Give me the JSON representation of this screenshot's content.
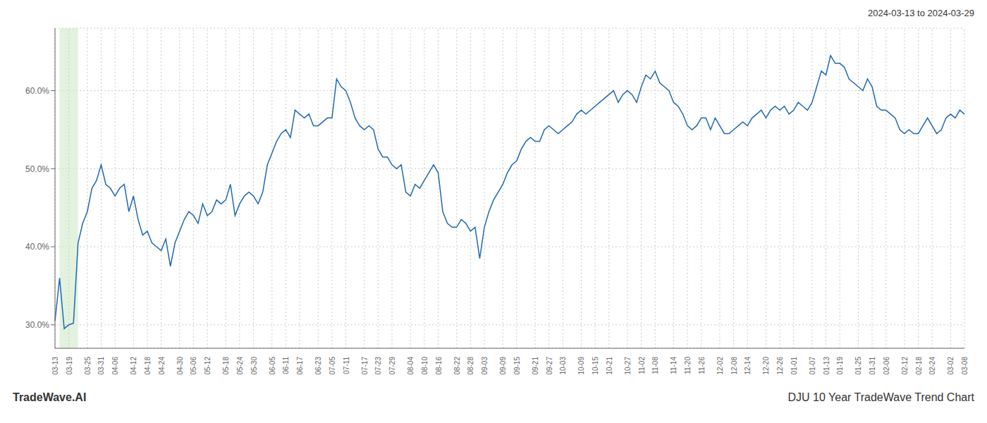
{
  "chart_data": {
    "type": "line",
    "title": "DJU 10 Year TradeWave Trend Chart",
    "subtitle": "2024-03-13 to 2024-03-29",
    "annotations": [
      "TradeWave.AI"
    ],
    "color": "#2068b0",
    "grid": true,
    "ylim": [
      27.0,
      68.0
    ],
    "yticks": [
      {
        "value": 30.0,
        "label": "30.0%"
      },
      {
        "value": 40.0,
        "label": "40.0%"
      },
      {
        "value": 50.0,
        "label": "50.0%"
      },
      {
        "value": 60.0,
        "label": "60.0%"
      }
    ],
    "highlight": {
      "start": 1,
      "end": 5,
      "color": "#d6ecd2"
    },
    "categories": [
      "03-13",
      null,
      null,
      "03-19",
      null,
      null,
      null,
      "03-25",
      null,
      null,
      "03-31",
      null,
      null,
      "04-06",
      null,
      null,
      null,
      "04-12",
      null,
      null,
      "04-18",
      null,
      null,
      "04-24",
      null,
      null,
      null,
      "04-30",
      null,
      null,
      "05-06",
      null,
      null,
      "05-12",
      null,
      null,
      null,
      "05-18",
      null,
      null,
      "05-24",
      null,
      null,
      "05-30",
      null,
      null,
      null,
      "06-05",
      null,
      null,
      "06-11",
      null,
      null,
      "06-17",
      null,
      null,
      null,
      "06-23",
      null,
      null,
      "07-05",
      null,
      null,
      "07-11",
      null,
      null,
      null,
      "07-17",
      null,
      null,
      "07-23",
      null,
      null,
      "07-29",
      null,
      null,
      null,
      "08-04",
      null,
      null,
      "08-10",
      null,
      null,
      "08-16",
      null,
      null,
      null,
      "08-22",
      null,
      null,
      "08-28",
      null,
      null,
      "09-03",
      null,
      null,
      null,
      "09-09",
      null,
      null,
      "09-15",
      null,
      null,
      null,
      "09-21",
      null,
      null,
      "09-27",
      null,
      null,
      "10-03",
      null,
      null,
      null,
      "10-09",
      null,
      null,
      "10-15",
      null,
      null,
      "10-21",
      null,
      null,
      null,
      "10-27",
      null,
      null,
      "11-02",
      null,
      null,
      "11-08",
      null,
      null,
      null,
      "11-14",
      null,
      null,
      "11-20",
      null,
      null,
      "11-26",
      null,
      null,
      null,
      "12-02",
      null,
      null,
      "12-08",
      null,
      null,
      "12-14",
      null,
      null,
      null,
      "12-20",
      null,
      null,
      "12-26",
      null,
      null,
      "01-01",
      null,
      null,
      null,
      "01-07",
      null,
      null,
      "01-13",
      null,
      null,
      "01-19",
      null,
      null,
      null,
      "01-25",
      null,
      null,
      "01-31",
      null,
      null,
      "02-06",
      null,
      null,
      null,
      "02-12",
      null,
      null,
      "02-18",
      null,
      null,
      "02-24",
      null,
      null,
      null,
      "03-02",
      null,
      null,
      "03-08"
    ],
    "values": [
      30.5,
      36.0,
      29.5,
      30.0,
      30.2,
      40.5,
      43.0,
      44.5,
      47.5,
      48.5,
      50.5,
      48.0,
      47.5,
      46.5,
      47.5,
      48.0,
      44.5,
      46.5,
      43.5,
      41.5,
      42.0,
      40.5,
      40.0,
      39.5,
      41.0,
      37.5,
      40.5,
      42.0,
      43.5,
      44.5,
      44.0,
      43.0,
      45.5,
      44.0,
      44.5,
      46.0,
      45.5,
      46.0,
      48.0,
      44.0,
      45.5,
      46.5,
      47.0,
      46.5,
      45.5,
      47.0,
      50.5,
      52.0,
      53.5,
      54.5,
      55.0,
      54.0,
      57.5,
      57.0,
      56.5,
      57.0,
      55.5,
      55.5,
      56.0,
      56.5,
      56.5,
      61.5,
      60.5,
      60.0,
      58.5,
      56.5,
      55.5,
      55.0,
      55.5,
      55.0,
      52.5,
      51.5,
      51.5,
      50.5,
      50.0,
      50.5,
      47.0,
      46.5,
      48.0,
      47.5,
      48.5,
      49.5,
      50.5,
      49.5,
      44.5,
      43.0,
      42.5,
      42.5,
      43.5,
      43.0,
      42.0,
      42.5,
      38.5,
      42.5,
      44.5,
      46.0,
      47.0,
      48.0,
      49.5,
      50.5,
      51.0,
      52.5,
      53.5,
      54.0,
      53.5,
      53.5,
      55.0,
      55.5,
      55.0,
      54.5,
      55.0,
      55.5,
      56.0,
      57.0,
      57.5,
      57.0,
      57.5,
      58.0,
      58.5,
      59.0,
      59.5,
      60.0,
      58.5,
      59.5,
      60.0,
      59.5,
      58.5,
      60.5,
      62.0,
      61.5,
      62.5,
      61.0,
      60.5,
      60.0,
      58.5,
      58.0,
      57.0,
      55.5,
      55.0,
      55.5,
      56.5,
      56.5,
      55.0,
      56.5,
      55.5,
      54.5,
      54.5,
      55.0,
      55.5,
      56.0,
      55.5,
      56.5,
      57.0,
      57.5,
      56.5,
      57.5,
      58.0,
      57.5,
      58.0,
      57.0,
      57.5,
      58.5,
      58.0,
      57.5,
      58.5,
      60.5,
      62.5,
      62.0,
      64.5,
      63.5,
      63.5,
      63.0,
      61.5,
      61.0,
      60.5,
      60.0,
      61.5,
      60.5,
      58.0,
      57.5,
      57.5,
      57.0,
      56.5,
      55.0,
      54.5,
      55.0,
      54.5,
      54.5,
      55.5,
      56.5,
      55.5,
      54.5,
      55.0,
      56.5,
      57.0,
      56.5,
      57.5,
      57.0
    ]
  }
}
